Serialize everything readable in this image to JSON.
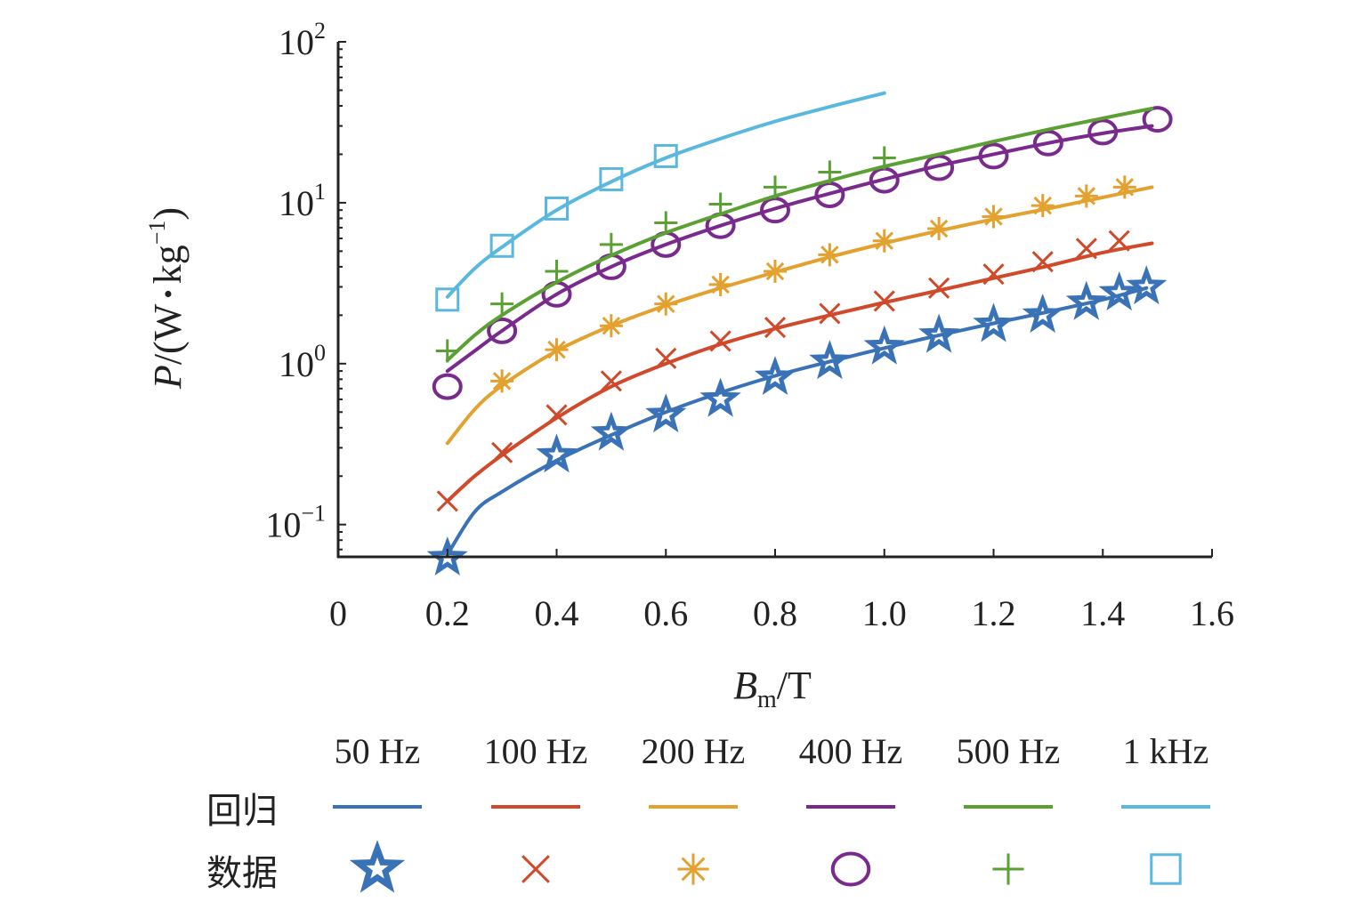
{
  "chart_data": {
    "type": "scatter",
    "x_axis": {
      "label_main": "B",
      "label_sub": "m",
      "label_suffix": "/T",
      "lim": [
        0,
        1.6
      ],
      "ticks": [
        0,
        0.2,
        0.4,
        0.6,
        0.8,
        1.0,
        1.2,
        1.4,
        1.6
      ],
      "tick_labels": [
        "0",
        "0.2",
        "0.4",
        "0.6",
        "0.8",
        "1.0",
        "1.2",
        "1.4",
        "1.6"
      ]
    },
    "y_axis": {
      "scale": "log",
      "label_main": "P",
      "label_rest": "/(W",
      "label_dot": "•",
      "label_unit": "kg",
      "label_exp": "−1",
      "label_close": ")",
      "lim": [
        0.063,
        100
      ],
      "ticks": [
        0.1,
        1,
        10,
        100
      ],
      "tick_base": "10",
      "tick_exponents": [
        "−1",
        "0",
        "1",
        "2"
      ]
    },
    "legend": {
      "row_fit_label": "回归",
      "row_data_label": "数据",
      "placement": "bottom"
    },
    "series": [
      {
        "name": "50 Hz",
        "color": "#3a72b8",
        "marker": "star",
        "x": [
          0.2,
          0.4,
          0.5,
          0.6,
          0.7,
          0.8,
          0.9,
          1.0,
          1.1,
          1.2,
          1.29,
          1.37,
          1.43,
          1.48
        ],
        "y": [
          0.062,
          0.27,
          0.37,
          0.48,
          0.6,
          0.82,
          1.03,
          1.27,
          1.5,
          1.75,
          2.0,
          2.4,
          2.75,
          3.0
        ],
        "fit_x": [
          0.2,
          0.25,
          0.3,
          0.4,
          0.5,
          0.6,
          0.7,
          0.8,
          0.9,
          1.0,
          1.1,
          1.2,
          1.3,
          1.4,
          1.48
        ],
        "fit_y": [
          0.065,
          0.12,
          0.16,
          0.25,
          0.36,
          0.5,
          0.66,
          0.84,
          1.03,
          1.25,
          1.5,
          1.78,
          2.1,
          2.5,
          2.95
        ]
      },
      {
        "name": "100 Hz",
        "color": "#d0492a",
        "marker": "x",
        "x": [
          0.2,
          0.3,
          0.4,
          0.5,
          0.6,
          0.7,
          0.8,
          0.9,
          1.0,
          1.1,
          1.2,
          1.29,
          1.37,
          1.43
        ],
        "y": [
          0.14,
          0.28,
          0.48,
          0.78,
          1.08,
          1.38,
          1.68,
          2.05,
          2.45,
          2.95,
          3.6,
          4.3,
          5.2,
          5.8
        ],
        "fit_x": [
          0.2,
          0.25,
          0.3,
          0.4,
          0.5,
          0.6,
          0.7,
          0.8,
          0.9,
          1.0,
          1.1,
          1.2,
          1.3,
          1.4,
          1.49
        ],
        "fit_y": [
          0.14,
          0.2,
          0.27,
          0.46,
          0.72,
          1.0,
          1.32,
          1.65,
          2.0,
          2.4,
          2.85,
          3.4,
          4.05,
          4.9,
          5.6
        ]
      },
      {
        "name": "200 Hz",
        "color": "#e3a12f",
        "marker": "asterisk",
        "x": [
          0.3,
          0.4,
          0.5,
          0.6,
          0.7,
          0.8,
          0.9,
          1.0,
          1.1,
          1.2,
          1.29,
          1.37,
          1.44
        ],
        "y": [
          0.78,
          1.22,
          1.72,
          2.35,
          3.1,
          3.75,
          4.75,
          5.8,
          6.9,
          8.2,
          9.6,
          11.0,
          12.5
        ],
        "fit_x": [
          0.2,
          0.25,
          0.3,
          0.4,
          0.5,
          0.6,
          0.7,
          0.8,
          0.9,
          1.0,
          1.1,
          1.2,
          1.3,
          1.4,
          1.49
        ],
        "fit_y": [
          0.32,
          0.52,
          0.73,
          1.2,
          1.72,
          2.3,
          2.95,
          3.7,
          4.6,
          5.6,
          6.7,
          7.9,
          9.2,
          10.8,
          12.5
        ]
      },
      {
        "name": "400 Hz",
        "color": "#7a2a8c",
        "marker": "circle",
        "x": [
          0.2,
          0.3,
          0.4,
          0.5,
          0.6,
          0.7,
          0.8,
          0.9,
          1.0,
          1.1,
          1.2,
          1.3,
          1.4,
          1.5
        ],
        "y": [
          0.72,
          1.6,
          2.7,
          4.0,
          5.5,
          7.2,
          9.0,
          11.2,
          13.8,
          16.5,
          19.5,
          23.5,
          27.5,
          33.0
        ],
        "fit_x": [
          0.2,
          0.25,
          0.3,
          0.4,
          0.5,
          0.6,
          0.7,
          0.8,
          0.9,
          1.0,
          1.1,
          1.2,
          1.3,
          1.4,
          1.49
        ],
        "fit_y": [
          0.9,
          1.2,
          1.6,
          2.7,
          4.0,
          5.5,
          7.2,
          9.2,
          11.4,
          14.0,
          17.0,
          20.0,
          23.5,
          27.0,
          30.0
        ]
      },
      {
        "name": "500 Hz",
        "color": "#5aa033",
        "marker": "plus",
        "x": [
          0.2,
          0.3,
          0.4,
          0.5,
          0.6,
          0.7,
          0.8,
          0.9,
          1.0
        ],
        "y": [
          1.2,
          2.35,
          3.75,
          5.5,
          7.5,
          9.8,
          12.5,
          15.5,
          19.0
        ],
        "fit_x": [
          0.2,
          0.25,
          0.3,
          0.4,
          0.5,
          0.6,
          0.7,
          0.8,
          0.9,
          1.0,
          1.1,
          1.2,
          1.3,
          1.4,
          1.49
        ],
        "fit_y": [
          1.05,
          1.5,
          2.0,
          3.2,
          4.7,
          6.5,
          8.5,
          11.0,
          13.7,
          16.8,
          20.0,
          24.0,
          28.5,
          33.5,
          38.5
        ]
      },
      {
        "name": "1 kHz",
        "color": "#5ab8df",
        "marker": "square",
        "x": [
          0.2,
          0.3,
          0.4,
          0.5,
          0.6
        ],
        "y": [
          2.5,
          5.4,
          9.2,
          14.0,
          19.5
        ],
        "fit_x": [
          0.2,
          0.25,
          0.3,
          0.4,
          0.5,
          0.6,
          0.7,
          0.8,
          0.9,
          1.0
        ],
        "fit_y": [
          2.6,
          3.9,
          5.3,
          9.0,
          13.5,
          19.0,
          25.0,
          32.0,
          39.5,
          48.0
        ]
      }
    ]
  }
}
